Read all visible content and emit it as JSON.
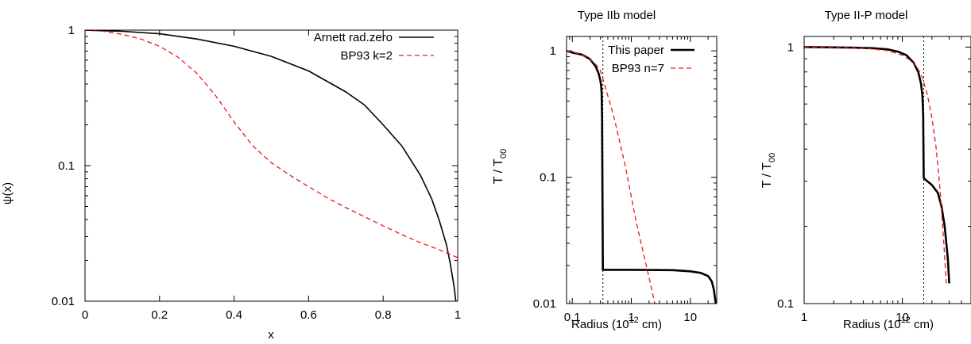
{
  "chart_data": [
    {
      "type": "line",
      "title": "",
      "xlabel": "x",
      "ylabel": "ψ(x)",
      "xscale": "linear",
      "yscale": "log",
      "xlim": [
        0,
        1
      ],
      "ylim": [
        0.01,
        1
      ],
      "xticks": [
        "0",
        "0.2",
        "0.4",
        "0.6",
        "0.8",
        "1"
      ],
      "yticks": [
        "0.01",
        "0.1",
        "1"
      ],
      "legend_position": "top-right",
      "series": [
        {
          "name": "Arnett rad.zero",
          "color": "#000000",
          "style": "solid",
          "x": [
            0,
            0.1,
            0.2,
            0.3,
            0.4,
            0.5,
            0.6,
            0.7,
            0.75,
            0.8,
            0.85,
            0.9,
            0.93,
            0.95,
            0.97,
            0.98,
            0.99,
            0.995
          ],
          "y": [
            1,
            0.98,
            0.94,
            0.86,
            0.76,
            0.64,
            0.5,
            0.35,
            0.28,
            0.2,
            0.14,
            0.085,
            0.057,
            0.04,
            0.026,
            0.019,
            0.013,
            0.01
          ]
        },
        {
          "name": "BP93 k=2",
          "color": "#e41a1c",
          "style": "dashed",
          "x": [
            0,
            0.05,
            0.1,
            0.15,
            0.2,
            0.25,
            0.3,
            0.35,
            0.4,
            0.45,
            0.5,
            0.55,
            0.6,
            0.65,
            0.7,
            0.75,
            0.8,
            0.85,
            0.9,
            0.95,
            1.0
          ],
          "y": [
            1,
            0.98,
            0.93,
            0.86,
            0.76,
            0.63,
            0.48,
            0.33,
            0.21,
            0.14,
            0.105,
            0.085,
            0.07,
            0.058,
            0.049,
            0.042,
            0.036,
            0.031,
            0.027,
            0.024,
            0.021
          ]
        }
      ]
    },
    {
      "type": "line",
      "title": "Type IIb model",
      "xlabel": "Radius (10",
      "xlabel_sup": "12",
      "xlabel_tail": " cm)",
      "ylabel": "T / T",
      "ylabel_sub": "00",
      "xscale": "log",
      "yscale": "log",
      "xlim": [
        0.08,
        28
      ],
      "ylim": [
        0.01,
        1.3
      ],
      "xticks": [
        "0.1",
        "1",
        "10"
      ],
      "yticks": [
        "0.01",
        "0.1",
        "1"
      ],
      "vline_x": 0.33,
      "legend_position": "top-right",
      "series": [
        {
          "name": "This paper",
          "color": "#000000",
          "style": "solid-thick",
          "x": [
            0.08,
            0.1,
            0.15,
            0.2,
            0.25,
            0.28,
            0.3,
            0.31,
            0.315,
            0.32,
            0.33,
            0.34,
            1,
            5,
            10,
            15,
            20,
            23,
            25,
            27
          ],
          "y": [
            1.0,
            0.97,
            0.93,
            0.86,
            0.75,
            0.66,
            0.58,
            0.52,
            0.45,
            0.3,
            0.0185,
            0.0185,
            0.0185,
            0.0184,
            0.018,
            0.0175,
            0.0165,
            0.015,
            0.013,
            0.01
          ]
        },
        {
          "name": "BP93 n=7",
          "color": "#e41a1c",
          "style": "dashed",
          "x": [
            0.08,
            0.1,
            0.15,
            0.2,
            0.25,
            0.3,
            0.5,
            0.8,
            1.2,
            2.0,
            2.5
          ],
          "y": [
            1.0,
            0.98,
            0.93,
            0.86,
            0.78,
            0.7,
            0.31,
            0.12,
            0.045,
            0.016,
            0.01
          ]
        }
      ]
    },
    {
      "type": "line",
      "title": "Type II-P model",
      "xlabel": "Radius (10",
      "xlabel_sup": "12",
      "xlabel_tail": " cm)",
      "ylabel": "T / T",
      "ylabel_sub": "00",
      "xscale": "log",
      "yscale": "log",
      "xlim": [
        1,
        50
      ],
      "ylim": [
        0.1,
        1.1
      ],
      "xticks": [
        "1",
        "10"
      ],
      "yticks": [
        "0.1",
        "1"
      ],
      "vline_x": 16.5,
      "series": [
        {
          "name": "This paper",
          "color": "#000000",
          "style": "solid-thick",
          "x": [
            1,
            3,
            5,
            7,
            9,
            11,
            13,
            14.5,
            15.5,
            16,
            16.3,
            16.5,
            17,
            20,
            23,
            25,
            27,
            29,
            30
          ],
          "y": [
            1.0,
            0.995,
            0.99,
            0.98,
            0.96,
            0.93,
            0.87,
            0.8,
            0.72,
            0.65,
            0.55,
            0.31,
            0.305,
            0.29,
            0.27,
            0.24,
            0.2,
            0.15,
            0.12
          ]
        },
        {
          "name": "BP93 n=7",
          "color": "#e41a1c",
          "style": "dashed",
          "x": [
            1,
            4,
            7,
            10,
            12,
            14,
            16,
            18,
            20,
            22,
            24,
            26,
            28
          ],
          "y": [
            1.0,
            0.99,
            0.97,
            0.93,
            0.89,
            0.84,
            0.76,
            0.65,
            0.53,
            0.41,
            0.29,
            0.19,
            0.12
          ]
        }
      ]
    }
  ]
}
